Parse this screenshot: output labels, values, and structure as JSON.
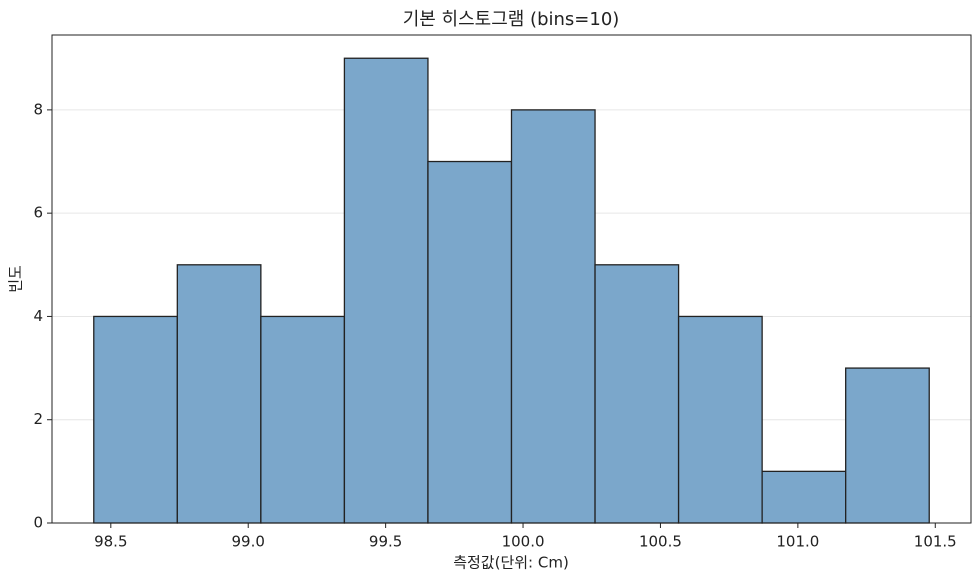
{
  "chart_data": {
    "type": "histogram",
    "title": "기본 히스토그램 (bins=10)",
    "x_label": "측정값(단위: Cm)",
    "y_label": "빈도",
    "bins": [
      98.438,
      98.742,
      99.046,
      99.35,
      99.654,
      99.958,
      100.262,
      100.566,
      100.87,
      101.174,
      101.478
    ],
    "values": [
      4,
      5,
      4,
      9,
      7,
      8,
      5,
      4,
      1,
      3
    ],
    "color": "#7ba7cb",
    "edgecolor": "#222222",
    "xlim": [
      98.286,
      101.63
    ],
    "xticks": [
      98.5,
      {
        "value": 99.0,
        "label": "99.0"
      },
      99.5,
      {
        "value": 100.0,
        "label": "100.0"
      },
      100.5,
      {
        "value": 101.0,
        "label": "101.0"
      },
      101.5
    ],
    "ylim": [
      0,
      9.45
    ],
    "yticks": [
      0,
      2,
      4,
      6,
      8
    ],
    "grid": true
  }
}
